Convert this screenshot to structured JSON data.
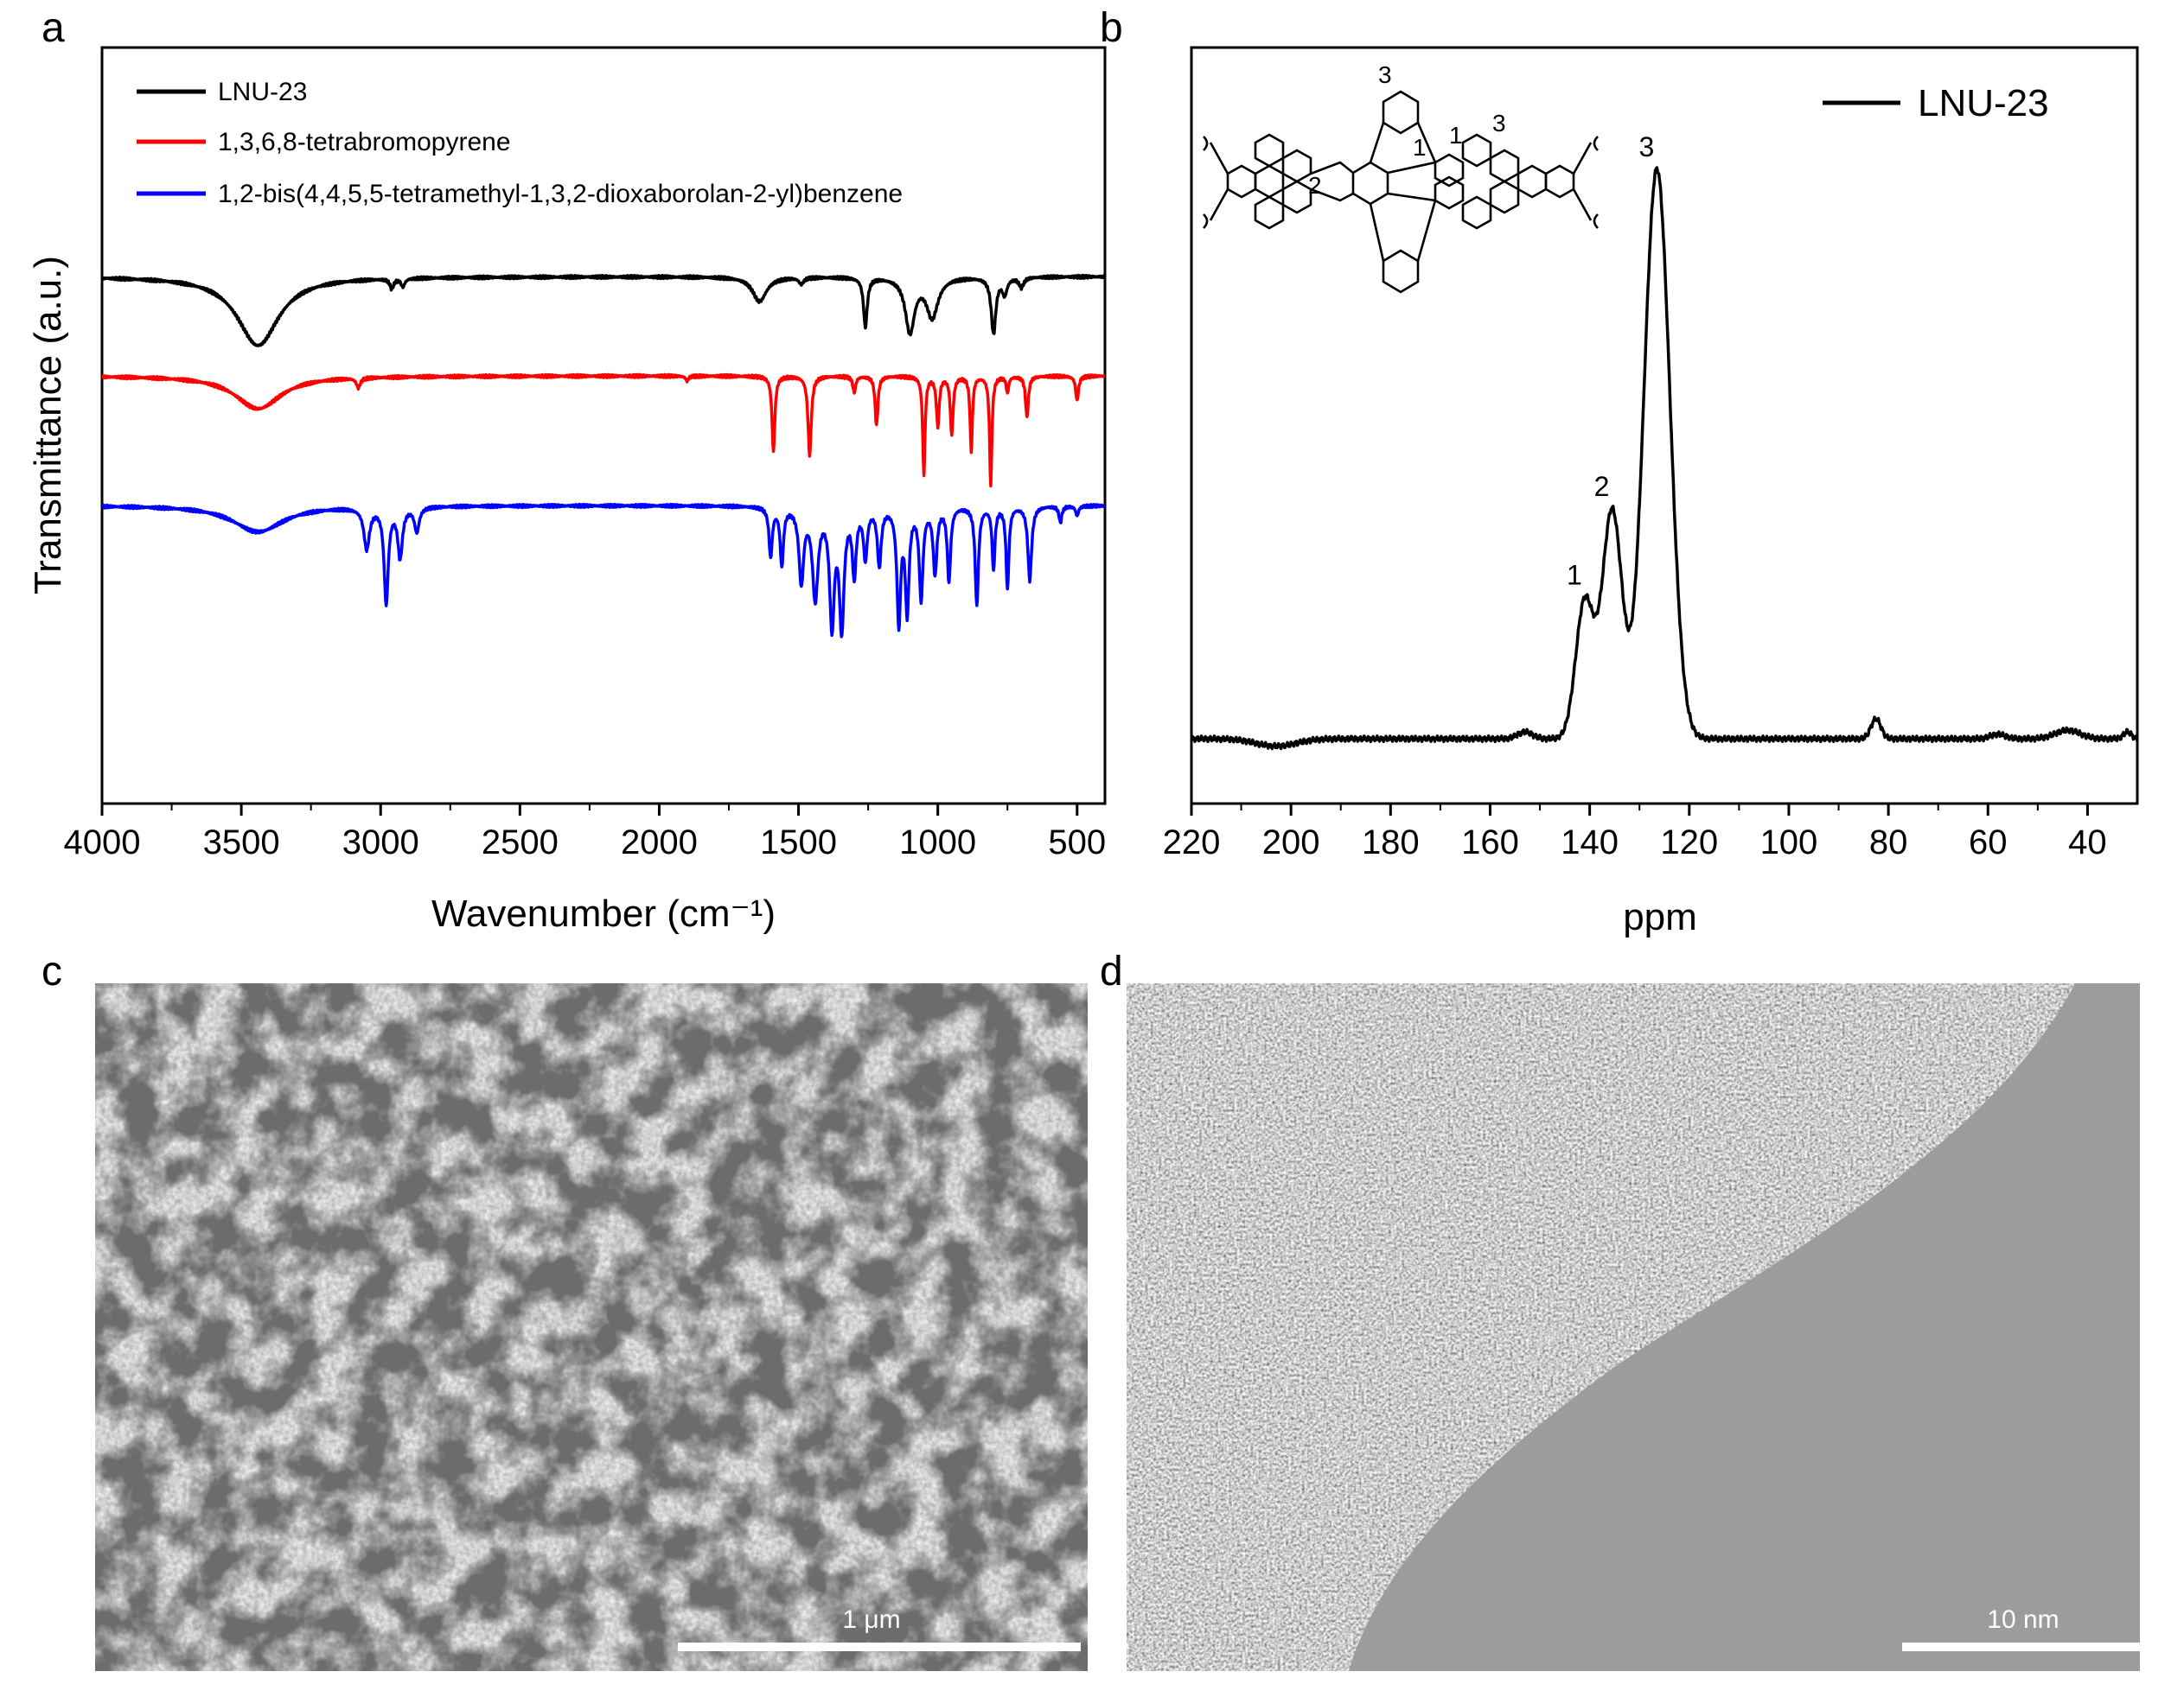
{
  "figure": {
    "panels": {
      "a": "a",
      "b": "b",
      "c": "c",
      "d": "d"
    },
    "panel_c": {
      "scale_label": "1 μm"
    },
    "panel_d": {
      "scale_label": "10 nm"
    }
  },
  "colors": {
    "black": "#000000",
    "red": "#ff0000",
    "blue": "#0000ff"
  },
  "chart_data": [
    {
      "type": "line",
      "panel": "a",
      "xlabel": "Wavenumber (cm⁻¹)",
      "ylabel": "Transmittance (a.u.)",
      "xlim": [
        4000,
        400
      ],
      "xticks": [
        4000,
        3500,
        3000,
        2500,
        2000,
        1500,
        1000,
        500
      ],
      "yticks": [],
      "legend_position": "top-left",
      "series": [
        {
          "name": "LNU-23",
          "color": "#000000",
          "baseline": 0.0,
          "bands": [
            {
              "center": 3440,
              "width": 90,
              "depth": 0.42
            },
            {
              "center": 2960,
              "width": 8,
              "depth": 0.06
            },
            {
              "center": 2920,
              "width": 8,
              "depth": 0.05
            },
            {
              "center": 1640,
              "width": 30,
              "depth": 0.15
            },
            {
              "center": 1490,
              "width": 10,
              "depth": 0.04
            },
            {
              "center": 1260,
              "width": 8,
              "depth": 0.3
            },
            {
              "center": 1100,
              "width": 20,
              "depth": 0.33
            },
            {
              "center": 1020,
              "width": 25,
              "depth": 0.24
            },
            {
              "center": 800,
              "width": 10,
              "depth": 0.34
            },
            {
              "center": 760,
              "width": 10,
              "depth": 0.1
            },
            {
              "center": 700,
              "width": 10,
              "depth": 0.06
            }
          ]
        },
        {
          "name": "1,3,6,8-tetrabromopyrene",
          "color": "#ff0000",
          "baseline": 0.0,
          "bands": [
            {
              "center": 3440,
              "width": 100,
              "depth": 0.2
            },
            {
              "center": 3080,
              "width": 8,
              "depth": 0.06
            },
            {
              "center": 1900,
              "width": 6,
              "depth": 0.03
            },
            {
              "center": 1590,
              "width": 6,
              "depth": 0.46
            },
            {
              "center": 1460,
              "width": 7,
              "depth": 0.48
            },
            {
              "center": 1300,
              "width": 6,
              "depth": 0.1
            },
            {
              "center": 1220,
              "width": 6,
              "depth": 0.3
            },
            {
              "center": 1050,
              "width": 5,
              "depth": 0.6
            },
            {
              "center": 1000,
              "width": 6,
              "depth": 0.3
            },
            {
              "center": 950,
              "width": 6,
              "depth": 0.35
            },
            {
              "center": 880,
              "width": 5,
              "depth": 0.45
            },
            {
              "center": 810,
              "width": 5,
              "depth": 0.66
            },
            {
              "center": 750,
              "width": 5,
              "depth": 0.1
            },
            {
              "center": 680,
              "width": 6,
              "depth": 0.25
            },
            {
              "center": 500,
              "width": 6,
              "depth": 0.15
            }
          ]
        },
        {
          "name": "1,2-bis(4,4,5,5-tetramethyl-1,3,2-dioxaborolan-2-yl)benzene",
          "color": "#0000ff",
          "baseline": 0.0,
          "bands": [
            {
              "center": 3440,
              "width": 110,
              "depth": 0.16
            },
            {
              "center": 3050,
              "width": 12,
              "depth": 0.25
            },
            {
              "center": 2980,
              "width": 9,
              "depth": 0.58
            },
            {
              "center": 2930,
              "width": 10,
              "depth": 0.3
            },
            {
              "center": 2870,
              "width": 10,
              "depth": 0.15
            },
            {
              "center": 1600,
              "width": 7,
              "depth": 0.3
            },
            {
              "center": 1560,
              "width": 7,
              "depth": 0.35
            },
            {
              "center": 1490,
              "width": 10,
              "depth": 0.45
            },
            {
              "center": 1440,
              "width": 12,
              "depth": 0.55
            },
            {
              "center": 1380,
              "width": 10,
              "depth": 0.7
            },
            {
              "center": 1345,
              "width": 10,
              "depth": 0.72
            },
            {
              "center": 1300,
              "width": 8,
              "depth": 0.4
            },
            {
              "center": 1260,
              "width": 8,
              "depth": 0.3
            },
            {
              "center": 1210,
              "width": 8,
              "depth": 0.35
            },
            {
              "center": 1140,
              "width": 8,
              "depth": 0.7
            },
            {
              "center": 1110,
              "width": 8,
              "depth": 0.62
            },
            {
              "center": 1060,
              "width": 8,
              "depth": 0.55
            },
            {
              "center": 1010,
              "width": 8,
              "depth": 0.4
            },
            {
              "center": 960,
              "width": 7,
              "depth": 0.45
            },
            {
              "center": 860,
              "width": 7,
              "depth": 0.6
            },
            {
              "center": 800,
              "width": 6,
              "depth": 0.38
            },
            {
              "center": 750,
              "width": 6,
              "depth": 0.5
            },
            {
              "center": 670,
              "width": 8,
              "depth": 0.45
            },
            {
              "center": 560,
              "width": 6,
              "depth": 0.1
            },
            {
              "center": 500,
              "width": 6,
              "depth": 0.06
            }
          ]
        }
      ]
    },
    {
      "type": "line",
      "panel": "b",
      "xlabel": "ppm",
      "ylabel": "",
      "xlim": [
        220,
        30
      ],
      "xticks": [
        220,
        200,
        180,
        160,
        140,
        120,
        100,
        80,
        60,
        40
      ],
      "yticks": [],
      "legend_position": "top-right",
      "series": [
        {
          "name": "LNU-23",
          "color": "#000000",
          "peaks": [
            {
              "ppm": 126.5,
              "width": 2.6,
              "height": 1.0,
              "label": "3"
            },
            {
              "ppm": 135.5,
              "width": 2.0,
              "height": 0.4,
              "label": "2"
            },
            {
              "ppm": 141.0,
              "width": 1.8,
              "height": 0.24,
              "label": "1"
            },
            {
              "ppm": 153.0,
              "width": 1.5,
              "height": 0.012
            },
            {
              "ppm": 82.5,
              "width": 1.0,
              "height": 0.035
            },
            {
              "ppm": 58.0,
              "width": 1.5,
              "height": 0.008
            },
            {
              "ppm": 44.0,
              "width": 2.5,
              "height": 0.015
            },
            {
              "ppm": 32.0,
              "width": 0.8,
              "height": 0.012
            }
          ],
          "dips": [
            {
              "ppm": 203.0,
              "width": 4.0,
              "depth": 0.013
            }
          ]
        }
      ],
      "structure_labels": [
        "3",
        "1",
        "1",
        "3",
        "2"
      ]
    }
  ]
}
